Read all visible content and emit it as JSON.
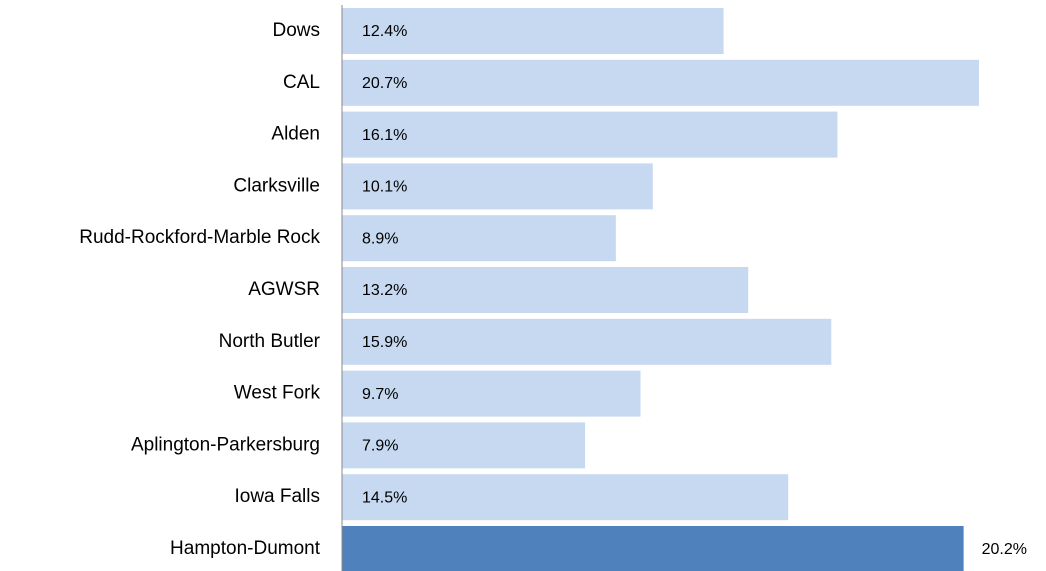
{
  "chart_data": {
    "type": "bar",
    "orientation": "horizontal",
    "categories": [
      "Dows",
      "CAL",
      "Alden",
      "Clarksville",
      "Rudd-Rockford-Marble Rock",
      "AGWSR",
      "North Butler",
      "West Fork",
      "Aplington-Parkersburg",
      "Iowa Falls",
      "Hampton-Dumont"
    ],
    "values": [
      12.4,
      20.7,
      16.1,
      10.1,
      8.9,
      13.2,
      15.9,
      9.7,
      7.9,
      14.5,
      20.2
    ],
    "value_labels": [
      "12.4%",
      "20.7%",
      "16.1%",
      "10.1%",
      "8.9%",
      "13.2%",
      "15.9%",
      "9.7%",
      "7.9%",
      "14.5%",
      "20.2%"
    ],
    "colors": [
      "#c6d9f1",
      "#c6d9f1",
      "#c6d9f1",
      "#c6d9f1",
      "#c6d9f1",
      "#c6d9f1",
      "#c6d9f1",
      "#c6d9f1",
      "#c6d9f1",
      "#c6d9f1",
      "#4f81bd"
    ],
    "xlim": [
      0,
      22
    ]
  }
}
